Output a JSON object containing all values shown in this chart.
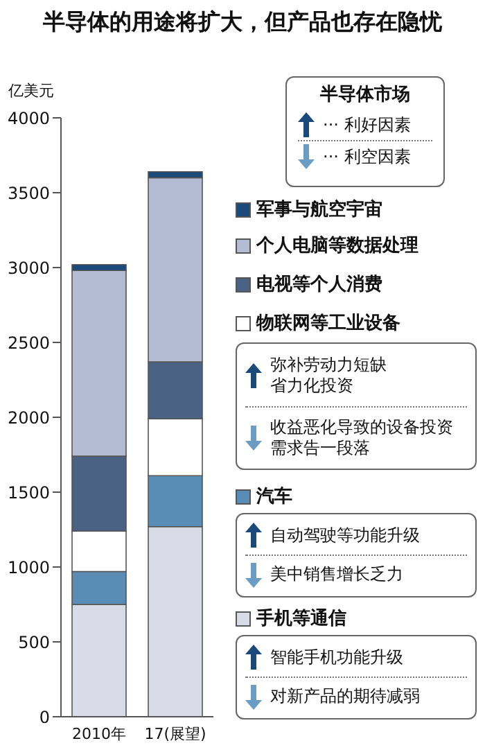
{
  "chart_data": {
    "type": "bar",
    "title": "半导体的用途将扩大，但产品也存在隐忧",
    "ylabel": "亿美元",
    "categories": [
      "2010年",
      "17(展望)"
    ],
    "stacked": true,
    "legend": "right",
    "ylim": [
      0,
      4000
    ],
    "yticks": [
      0,
      500,
      1000,
      1500,
      2000,
      2500,
      3000,
      3500,
      4000
    ],
    "series": [
      {
        "name": "手机等通信",
        "color": "#d9dbe6",
        "values": [
          750,
          1270
        ]
      },
      {
        "name": "汽车",
        "color": "#5a8db5",
        "values": [
          220,
          340
        ]
      },
      {
        "name": "物联网等工业设备",
        "color": "#ffffff",
        "values": [
          270,
          380
        ]
      },
      {
        "name": "电视等个人消费",
        "color": "#4a6284",
        "values": [
          500,
          380
        ]
      },
      {
        "name": "个人电脑等数据处理",
        "color": "#b4bcd3",
        "values": [
          1240,
          1230
        ]
      },
      {
        "name": "军事与航空宇宙",
        "color": "#1a4a7a",
        "values": [
          40,
          40
        ]
      }
    ],
    "annotations": [
      "半导体市场",
      "··· 利好因素",
      "··· 利空因素",
      "弥补劳动力短缺省力化投资",
      "收益恶化导致的设备投资需求告一段落",
      "自动驾驶等功能升级",
      "美中销售增长乏力",
      "智能手机功能升级",
      "对新产品的期待减弱"
    ]
  }
}
